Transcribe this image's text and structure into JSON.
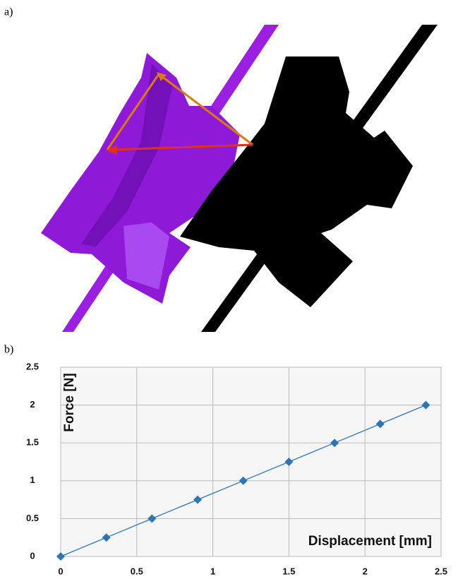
{
  "figure": {
    "panel_a_label": "a)",
    "panel_b_label": "b)"
  },
  "chart_data": {
    "type": "line",
    "x_label": "Displacement [mm]",
    "y_label": "Force [N]",
    "x": [
      0,
      0.3,
      0.6,
      0.9,
      1.2,
      1.5,
      1.8,
      2.1,
      2.4
    ],
    "values": [
      0,
      0.25,
      0.5,
      0.75,
      1,
      1.25,
      1.5,
      1.75,
      2
    ],
    "color": "#2e75b6",
    "xlim": [
      0,
      2.5
    ],
    "ylim": [
      0,
      2.5
    ],
    "xticks": [
      0,
      0.5,
      1,
      1.5,
      2,
      2.5
    ],
    "yticks": [
      0,
      0.5,
      1,
      1.5,
      2,
      2.5
    ],
    "grid": true
  }
}
